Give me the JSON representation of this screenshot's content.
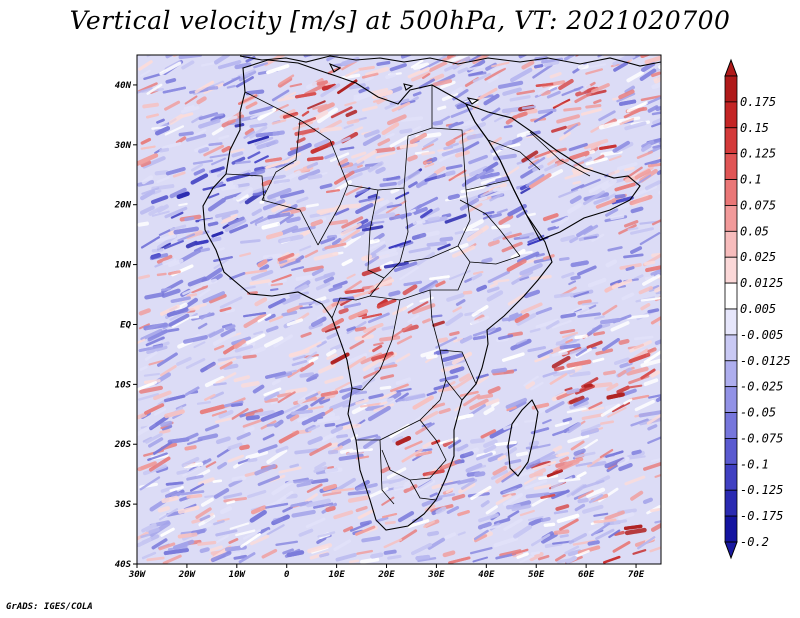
{
  "title": "Vertical velocity [m/s] at 500hPa, VT: 2021020700",
  "credit": "GrADS: IGES/COLA",
  "map": {
    "lon_range": [
      -30,
      75
    ],
    "lat_range": [
      -40,
      45
    ],
    "lon_ticks": [
      {
        "value": -30,
        "label": "30W"
      },
      {
        "value": -20,
        "label": "20W"
      },
      {
        "value": -10,
        "label": "10W"
      },
      {
        "value": 0,
        "label": "0"
      },
      {
        "value": 10,
        "label": "10E"
      },
      {
        "value": 20,
        "label": "20E"
      },
      {
        "value": 30,
        "label": "30E"
      },
      {
        "value": 40,
        "label": "40E"
      },
      {
        "value": 50,
        "label": "50E"
      },
      {
        "value": 60,
        "label": "60E"
      },
      {
        "value": 70,
        "label": "70E"
      }
    ],
    "lat_ticks": [
      {
        "value": 40,
        "label": "40N"
      },
      {
        "value": 30,
        "label": "30N"
      },
      {
        "value": 20,
        "label": "20N"
      },
      {
        "value": 10,
        "label": "10N"
      },
      {
        "value": 0,
        "label": "EQ"
      },
      {
        "value": -10,
        "label": "10S"
      },
      {
        "value": -20,
        "label": "20S"
      },
      {
        "value": -30,
        "label": "30S"
      },
      {
        "value": -40,
        "label": "40S"
      }
    ]
  },
  "colorbar": {
    "levels": [
      {
        "label": "0.175",
        "color": "#b01a1a"
      },
      {
        "label": "0.15",
        "color": "#c42525"
      },
      {
        "label": "0.125",
        "color": "#d43a3a"
      },
      {
        "label": "0.1",
        "color": "#e05555"
      },
      {
        "label": "0.075",
        "color": "#ea7777"
      },
      {
        "label": "0.05",
        "color": "#f29a9a"
      },
      {
        "label": "0.025",
        "color": "#f7bcbc"
      },
      {
        "label": "0.0125",
        "color": "#fbd8d8"
      },
      {
        "label": "0.005",
        "color": "#ffffff"
      },
      {
        "label": "-0.005",
        "color": "#e6e6fb"
      },
      {
        "label": "-0.0125",
        "color": "#c9c9f4"
      },
      {
        "label": "-0.025",
        "color": "#aeaeee"
      },
      {
        "label": "-0.05",
        "color": "#9292e6"
      },
      {
        "label": "-0.075",
        "color": "#7676dc"
      },
      {
        "label": "-0.1",
        "color": "#5a5ad0"
      },
      {
        "label": "-0.125",
        "color": "#4040c2"
      },
      {
        "label": "-0.175",
        "color": "#2a2ab2"
      },
      {
        "label": "-0.2",
        "color": "#1414a0"
      }
    ],
    "top_color": "#b01a1a",
    "bottom_color": "#1a1aa0"
  }
}
